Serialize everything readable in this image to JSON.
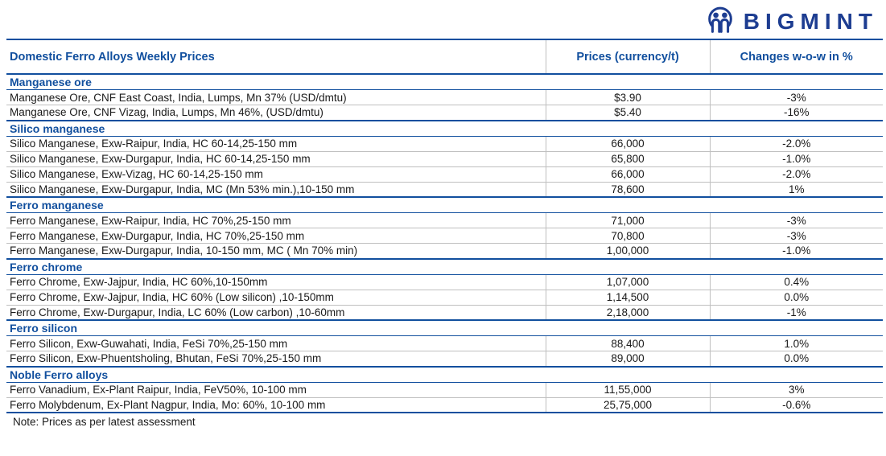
{
  "logo": {
    "text": "BIGMINT",
    "icon": "bigmint-people-circle-icon"
  },
  "palette": {
    "navy": "#114f9e",
    "logo_navy": "#1d3d91",
    "red": "#e14c4c",
    "green": "#13a76e",
    "neutral": "#1a1a1a",
    "grid_gray": "#bfbfbf"
  },
  "table": {
    "title": "Domestic Ferro Alloys Weekly Prices",
    "columns": [
      "Prices (currency/t)",
      "Changes w-o-w in %"
    ],
    "sections": [
      {
        "name": "Manganese ore",
        "rows": [
          {
            "product": "Manganese Ore, CNF East Coast, India, Lumps, Mn 37% (USD/dmtu)",
            "price": "$3.90",
            "change": "-3%",
            "tone": "red"
          },
          {
            "product": "Manganese Ore, CNF Vizag, India, Lumps, Mn 46%, (USD/dmtu)",
            "price": "$5.40",
            "change": "-16%",
            "tone": "red"
          }
        ]
      },
      {
        "name": "Silico manganese",
        "rows": [
          {
            "product": "Silico Manganese, Exw-Raipur, India, HC 60-14,25-150 mm",
            "price": "66,000",
            "change": "-2.0%",
            "tone": "red"
          },
          {
            "product": "Silico Manganese, Exw-Durgapur, India, HC 60-14,25-150 mm",
            "price": "65,800",
            "change": "-1.0%",
            "tone": "red"
          },
          {
            "product": "Silico Manganese, Exw-Vizag, HC 60-14,25-150 mm",
            "price": "66,000",
            "change": "-2.0%",
            "tone": "red"
          },
          {
            "product": "Silico Manganese, Exw-Durgapur, India, MC (Mn 53% min.),10-150 mm",
            "price": "78,600",
            "change": "1%",
            "tone": "green"
          }
        ]
      },
      {
        "name": "Ferro manganese",
        "rows": [
          {
            "product": "Ferro Manganese, Exw-Raipur, India, HC 70%,25-150 mm",
            "price": "71,000",
            "change": "-3%",
            "tone": "red"
          },
          {
            "product": "Ferro Manganese, Exw-Durgapur, India, HC 70%,25-150 mm",
            "price": "70,800",
            "change": "-3%",
            "tone": "red"
          },
          {
            "product": "Ferro Manganese, Exw-Durgapur, India, 10-150 mm, MC ( Mn 70% min)",
            "price": "1,00,000",
            "change": "-1.0%",
            "tone": "red"
          }
        ]
      },
      {
        "name": "Ferro chrome",
        "rows": [
          {
            "product": "Ferro Chrome, Exw-Jajpur, India, HC 60%,10-150mm",
            "price": "1,07,000",
            "change": "0.4%",
            "tone": "green"
          },
          {
            "product": "Ferro Chrome, Exw-Jajpur, India, HC 60% (Low silicon) ,10-150mm",
            "price": "1,14,500",
            "change": "0.0%",
            "tone": "neutral"
          },
          {
            "product": "Ferro Chrome, Exw-Durgapur, India, LC 60% (Low carbon) ,10-60mm",
            "price": "2,18,000",
            "change": "-1%",
            "tone": "red"
          }
        ]
      },
      {
        "name": "Ferro silicon",
        "rows": [
          {
            "product": "Ferro Silicon, Exw-Guwahati, India, FeSi 70%,25-150 mm",
            "price": "88,400",
            "change": "1.0%",
            "tone": "green"
          },
          {
            "product": "Ferro Silicon, Exw-Phuentsholing, Bhutan, FeSi 70%,25-150 mm",
            "price": "89,000",
            "change": "0.0%",
            "tone": "neutral"
          }
        ]
      },
      {
        "name": "Noble Ferro alloys",
        "rows": [
          {
            "product": "Ferro Vanadium, Ex-Plant Raipur, India, FeV50%,  10-100 mm",
            "price": "11,55,000",
            "change": "3%",
            "tone": "green"
          },
          {
            "product": "Ferro Molybdenum, Ex-Plant Nagpur, India, Mo: 60%, 10-100 mm",
            "price": "25,75,000",
            "change": "-0.6%",
            "tone": "red"
          }
        ]
      }
    ]
  },
  "note": "Note: Prices as per latest assessment"
}
